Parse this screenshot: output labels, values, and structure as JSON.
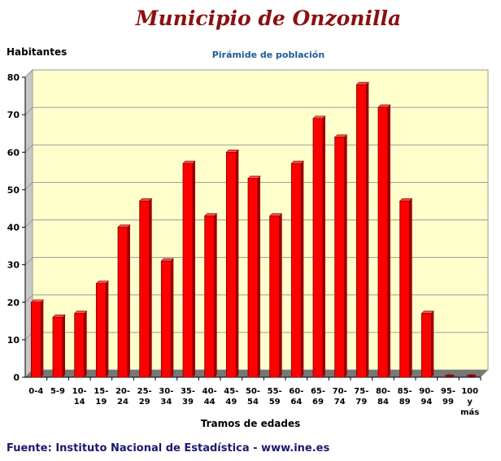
{
  "header": {
    "title": "Municipio de Onzonilla",
    "subtitle": "Pirámide de población"
  },
  "footer": {
    "source": "Fuente: Instituto Nacional de Estadística - www.ine.es"
  },
  "chart_data": {
    "type": "bar",
    "title": "Pirámide de población",
    "xlabel": "Tramos de edades",
    "ylabel": "Habitantes",
    "ylim": [
      0,
      80
    ],
    "yticks": [
      0,
      10,
      20,
      30,
      40,
      50,
      60,
      70,
      80
    ],
    "grid": true,
    "colors": {
      "bar": "#ff0000",
      "bar_top": "#ff4a4a",
      "bar_side": "#9a0000",
      "plot_bg": "#ffffcc",
      "floor": "#777777"
    },
    "categories": [
      [
        "0-4"
      ],
      [
        "5-9"
      ],
      [
        "10-",
        "14"
      ],
      [
        "15-",
        "19"
      ],
      [
        "20-",
        "24"
      ],
      [
        "25-",
        "29"
      ],
      [
        "30-",
        "34"
      ],
      [
        "35-",
        "39"
      ],
      [
        "40-",
        "44"
      ],
      [
        "45-",
        "49"
      ],
      [
        "50-",
        "54"
      ],
      [
        "55-",
        "59"
      ],
      [
        "60-",
        "64"
      ],
      [
        "65-",
        "69"
      ],
      [
        "70-",
        "74"
      ],
      [
        "75-",
        "79"
      ],
      [
        "80-",
        "84"
      ],
      [
        "85-",
        "89"
      ],
      [
        "90-",
        "94"
      ],
      [
        "95-",
        "99"
      ],
      [
        "100",
        "y",
        "más"
      ]
    ],
    "values": [
      20,
      16,
      17,
      25,
      40,
      47,
      31,
      57,
      43,
      60,
      53,
      43,
      57,
      69,
      64,
      78,
      72,
      47,
      17,
      0,
      0
    ]
  }
}
